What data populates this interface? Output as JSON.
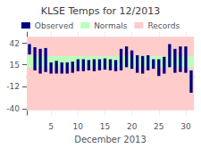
{
  "chart_data": {
    "type": "bar",
    "title": "KLSE Temps for 12/2013",
    "xlabel": "December 2013",
    "x": [
      1,
      2,
      3,
      4,
      5,
      6,
      7,
      8,
      9,
      10,
      11,
      12,
      13,
      14,
      15,
      16,
      17,
      18,
      19,
      20,
      21,
      22,
      23,
      24,
      25,
      26,
      27,
      28,
      29,
      30,
      31
    ],
    "series": [
      {
        "name": "Observed",
        "type": "bar",
        "color": "#000080",
        "low": [
          28,
          8,
          4,
          6,
          4,
          4,
          4,
          4,
          5,
          7,
          7,
          8,
          7,
          8,
          9,
          8,
          7,
          8,
          12,
          10,
          5,
          4,
          8,
          10,
          1,
          4,
          12,
          5,
          6,
          5,
          -20
        ],
        "high": [
          41,
          37,
          35,
          36,
          18,
          20,
          18,
          18,
          19,
          22,
          22,
          21,
          22,
          22,
          23,
          22,
          21,
          35,
          38,
          33,
          27,
          26,
          27,
          22,
          22,
          25,
          41,
          35,
          38,
          38,
          8
        ]
      },
      {
        "name": "Normals",
        "type": "band",
        "color": "#bbffbb",
        "low": [
          12,
          12,
          12,
          12,
          12,
          12,
          12,
          12,
          12,
          12,
          12,
          12,
          12,
          12,
          12,
          12,
          12,
          12,
          12,
          12,
          12,
          12,
          12,
          12,
          12,
          12,
          12,
          12,
          12,
          12,
          12
        ],
        "high": [
          26,
          26,
          26,
          26,
          26,
          26,
          26,
          26,
          26,
          26,
          26,
          26,
          26,
          26,
          26,
          26,
          26,
          26,
          26,
          26,
          26,
          26,
          26,
          26,
          26,
          26,
          26,
          26,
          26,
          26,
          26
        ]
      },
      {
        "name": "Records",
        "type": "band",
        "color": "#ffcccc",
        "low": -42,
        "high": 50
      }
    ],
    "xlim": [
      0.5,
      31.5
    ],
    "xticks": [
      5,
      10,
      15,
      20,
      25,
      30
    ],
    "ylim": [
      -48,
      56
    ],
    "yticks": [
      -40,
      -12,
      15,
      42
    ],
    "grid": true,
    "legend": "top"
  }
}
